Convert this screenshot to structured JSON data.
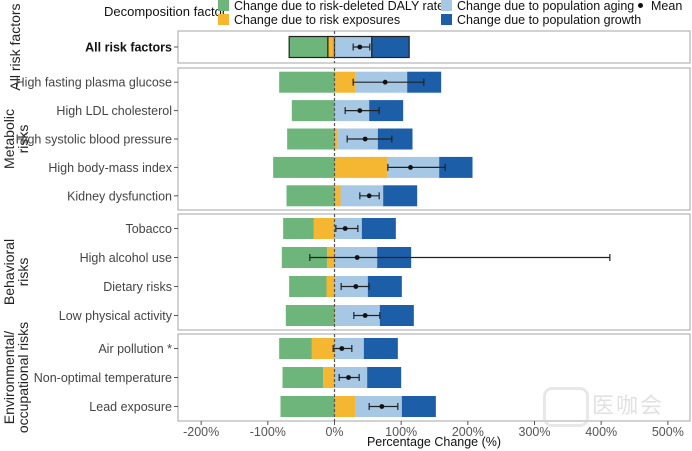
{
  "chart_data": {
    "type": "bar",
    "orientation": "horizontal-stacked",
    "title": "",
    "xlabel": "Percentage Change (%)",
    "ylabel": "",
    "xlim": [
      -230,
      535
    ],
    "xticks": [
      -200,
      -100,
      0,
      100,
      200,
      300,
      400,
      500
    ],
    "xtick_labels": [
      "-200%",
      "-100%",
      "0%",
      "100%",
      "200%",
      "300%",
      "400%",
      "500%"
    ],
    "grid": false,
    "reference_line": {
      "x": 0,
      "style": "dashed"
    },
    "legend": {
      "title": "Decomposition factor",
      "placement": "top",
      "entries": [
        {
          "key": "rate",
          "label": "Change due to risk-deleted DALY rate",
          "color": "#6db57a"
        },
        {
          "key": "exposure",
          "label": "Change due to risk exposures",
          "color": "#f5b731"
        },
        {
          "key": "aging",
          "label": "Change due to population aging",
          "color": "#a6c8e4"
        },
        {
          "key": "growth",
          "label": "Change due to population growth",
          "color": "#1c5fa8"
        },
        {
          "key": "mean",
          "label": "Mean",
          "color": "#111111"
        }
      ]
    },
    "groups": [
      {
        "name": "All risk factors",
        "rows": [
          {
            "label": "All risk factors",
            "bold": true,
            "outlined": true,
            "rate": -58,
            "exposure": -10,
            "aging": 56,
            "growth": 56,
            "mean": 38,
            "ci": [
              28,
              53
            ]
          }
        ]
      },
      {
        "name": "Metabolic\nrisks",
        "rows": [
          {
            "label": "High fasting plasma glucose",
            "rate": -83,
            "exposure": 32,
            "aging": 77,
            "growth": 51,
            "mean": 76,
            "ci": [
              28,
              134
            ]
          },
          {
            "label": "High LDL cholesterol",
            "rate": -64,
            "exposure": 0,
            "aging": 52,
            "growth": 51,
            "mean": 38,
            "ci": [
              16,
              67
            ]
          },
          {
            "label": "High systolic blood pressure",
            "rate": -71,
            "exposure": 5,
            "aging": 60,
            "growth": 52,
            "mean": 46,
            "ci": [
              19,
              86
            ]
          },
          {
            "label": "High body-mass index",
            "rate": -92,
            "exposure": 80,
            "aging": 77,
            "growth": 50,
            "mean": 114,
            "ci": [
              80,
              166
            ]
          },
          {
            "label": "Kidney dysfunction",
            "rate": -72,
            "exposure": 9,
            "aging": 64,
            "growth": 51,
            "mean": 52,
            "ci": [
              38,
              67
            ]
          }
        ]
      },
      {
        "name": "Behavioral\nrisks",
        "rows": [
          {
            "label": "Tobacco",
            "rate": -46,
            "exposure": -31,
            "aging": 41,
            "growth": 51,
            "mean": 16,
            "ci": [
              2,
              35
            ]
          },
          {
            "label": "High alcohol use",
            "rate": -68,
            "exposure": -11,
            "aging": 64,
            "growth": 51,
            "mean": 34,
            "ci": [
              -37,
              413
            ]
          },
          {
            "label": "Dietary risks",
            "rate": -56,
            "exposure": -12,
            "aging": 50,
            "growth": 51,
            "mean": 32,
            "ci": [
              10,
              52
            ]
          },
          {
            "label": "Low physical activity",
            "rate": -73,
            "exposure": 2,
            "aging": 66,
            "growth": 51,
            "mean": 46,
            "ci": [
              29,
              68
            ]
          }
        ]
      },
      {
        "name": "Environmental/\noccupational risks",
        "rows": [
          {
            "label": "Air pollution *",
            "rate": -49,
            "exposure": -34,
            "aging": 44,
            "growth": 51,
            "mean": 11,
            "ci": [
              -2,
              26
            ]
          },
          {
            "label": "Non-optimal temperature",
            "rate": -61,
            "exposure": -17,
            "aging": 49,
            "growth": 51,
            "mean": 21,
            "ci": [
              7,
              37
            ]
          },
          {
            "label": "Lead exposure",
            "rate": -81,
            "exposure": 32,
            "aging": 69,
            "growth": 51,
            "mean": 71,
            "ci": [
              52,
              95
            ]
          }
        ]
      }
    ]
  },
  "watermark": "医咖会"
}
